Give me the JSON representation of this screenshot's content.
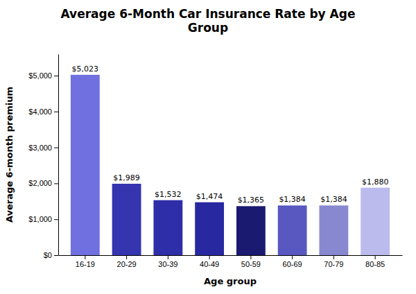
{
  "chart_data": {
    "type": "bar",
    "title": "Average 6-Month Car Insurance Rate by Age\nGroup",
    "xlabel": "Age group",
    "ylabel": "Average 6-month premium",
    "categories": [
      "16-19",
      "20-29",
      "30-39",
      "40-49",
      "50-59",
      "60-69",
      "70-79",
      "80-85"
    ],
    "values": [
      5023,
      1989,
      1532,
      1474,
      1365,
      1384,
      1384,
      1880
    ],
    "value_labels": [
      "$5,023",
      "$1,989",
      "$1,532",
      "$1,474",
      "$1,365",
      "$1,384",
      "$1,384",
      "$1,880"
    ],
    "colors": [
      "#7070E0",
      "#3535B0",
      "#2E2EA8",
      "#2828A0",
      "#1A1A70",
      "#5858C0",
      "#8888D0",
      "#BBBBEE"
    ],
    "ylim": [
      0,
      5600
    ],
    "yticks": [
      {
        "value": 0,
        "label": "$0"
      },
      {
        "value": 1000,
        "label": "$1,000"
      },
      {
        "value": 2000,
        "label": "$2,000"
      },
      {
        "value": 3000,
        "label": "$3,000"
      },
      {
        "value": 4000,
        "label": "$4,000"
      },
      {
        "value": 5000,
        "label": "$5,000"
      }
    ],
    "data_labels": true,
    "grid": false
  }
}
